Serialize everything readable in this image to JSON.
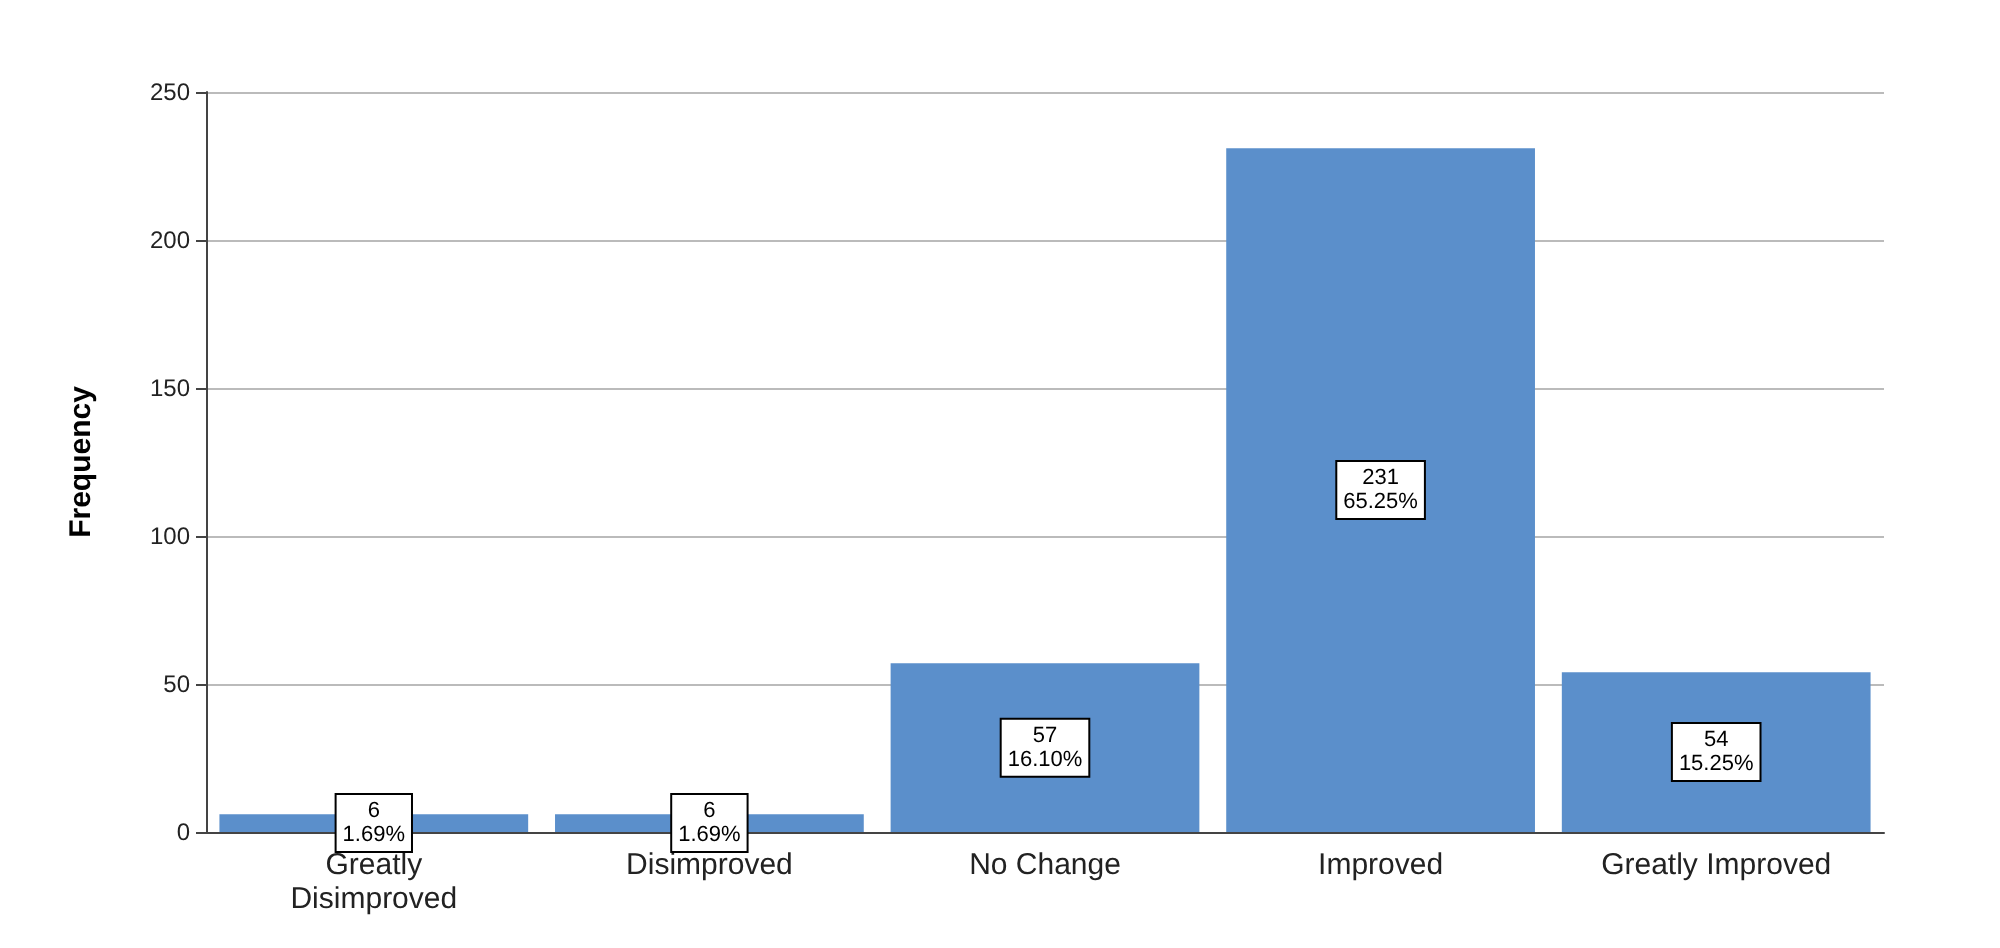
{
  "chart_data": {
    "type": "bar",
    "ylabel": "Frequency",
    "categories": [
      "Greatly\nDisimproved",
      "Disimproved",
      "No Change",
      "Improved",
      "Greatly Improved"
    ],
    "values": [
      6,
      6,
      57,
      231,
      54
    ],
    "value_labels": [
      "6\n1.69%",
      "6\n1.69%",
      "57\n16.10%",
      "231\n65.25%",
      "54\n15.25%"
    ],
    "color": "#5b8fcb",
    "ylim": [
      0,
      250
    ],
    "yticks": [
      0,
      50,
      100,
      150,
      200,
      250
    ],
    "grid": "y"
  }
}
